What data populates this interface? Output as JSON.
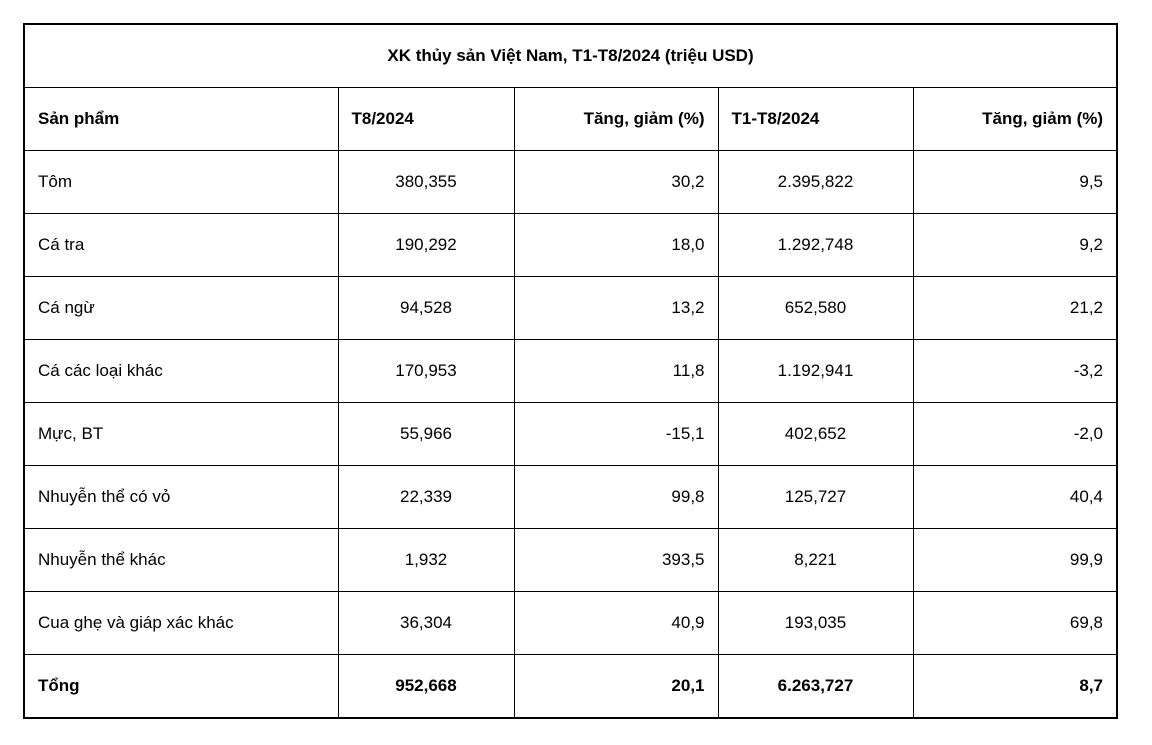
{
  "chart_data": {
    "type": "table",
    "title": "XK thủy sản Việt Nam, T1-T8/2024 (triệu USD)",
    "columns": [
      "Sản phẩm",
      "T8/2024",
      "Tăng, giảm (%)",
      "T1-T8/2024",
      "Tăng, giảm (%)"
    ],
    "rows": [
      [
        "Tôm",
        "380,355",
        "30,2",
        "2.395,822",
        "9,5"
      ],
      [
        "Cá tra",
        "190,292",
        "18,0",
        "1.292,748",
        "9,2"
      ],
      [
        "Cá ngừ",
        "94,528",
        "13,2",
        "652,580",
        "21,2"
      ],
      [
        "Cá các loại khác",
        "170,953",
        "11,8",
        "1.192,941",
        "-3,2"
      ],
      [
        "Mực, BT",
        "55,966",
        "-15,1",
        "402,652",
        "-2,0"
      ],
      [
        "Nhuyễn thể có vỏ",
        "22,339",
        "99,8",
        "125,727",
        "40,4"
      ],
      [
        "Nhuyễn thể khác",
        "1,932",
        "393,5",
        "8,221",
        "99,9"
      ],
      [
        "Cua ghẹ và giáp xác khác",
        "36,304",
        "40,9",
        "193,035",
        "69,8"
      ]
    ],
    "total_row": [
      "Tổng",
      "952,668",
      "20,1",
      "6.263,727",
      "8,7"
    ],
    "layout": {
      "border_color": "#000000",
      "text_color": "#000000",
      "background_color": "#ffffff",
      "grid": true,
      "title_position": "top-center-merged-cell"
    }
  }
}
